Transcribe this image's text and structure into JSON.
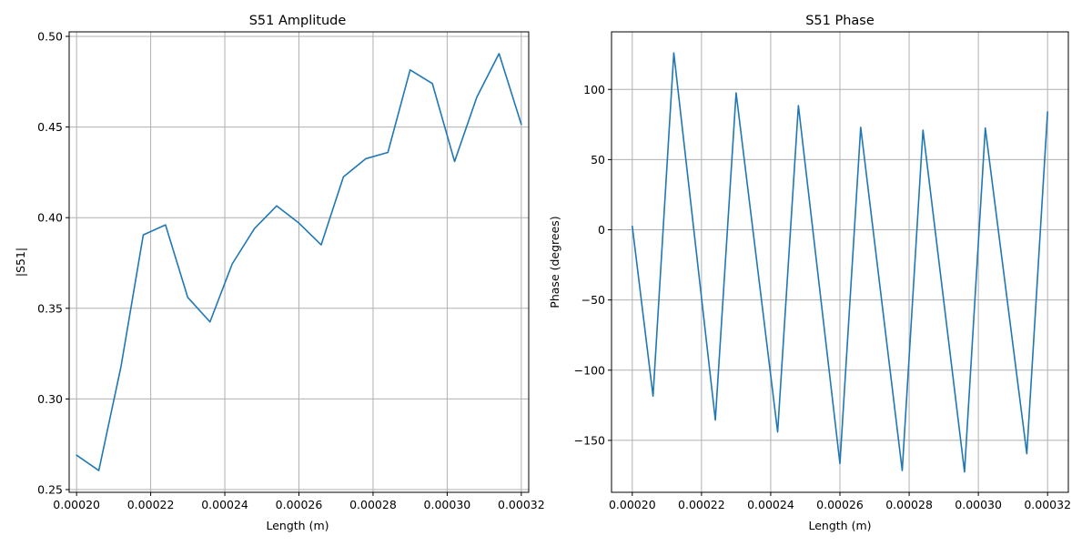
{
  "chart_data": [
    {
      "type": "line",
      "title": "S51 Amplitude",
      "xlabel": "Length (m)",
      "ylabel": "|S51|",
      "xlim": [
        0.000198,
        0.000322
      ],
      "ylim": [
        0.2485,
        0.5025
      ],
      "grid": true,
      "xticks": [
        0.0002,
        0.00022,
        0.00024,
        0.00026,
        0.00028,
        0.0003,
        0.00032
      ],
      "xtick_labels": [
        "0.00020",
        "0.00022",
        "0.00024",
        "0.00026",
        "0.00028",
        "0.00030",
        "0.00032"
      ],
      "yticks": [
        0.25,
        0.3,
        0.35,
        0.4,
        0.45,
        0.5
      ],
      "ytick_labels": [
        "0.25",
        "0.30",
        "0.35",
        "0.40",
        "0.45",
        "0.50"
      ],
      "color": "#1f77b4",
      "x": [
        0.0002,
        0.000206,
        0.000212,
        0.000218,
        0.000224,
        0.00023,
        0.000236,
        0.000242,
        0.000248,
        0.000254,
        0.00026,
        0.000266,
        0.000272,
        0.000278,
        0.000284,
        0.00029,
        0.000296,
        0.000302,
        0.000308,
        0.000314,
        0.00032
      ],
      "y": [
        0.269,
        0.2605,
        0.318,
        0.3905,
        0.396,
        0.356,
        0.3425,
        0.3745,
        0.394,
        0.4065,
        0.397,
        0.385,
        0.4225,
        0.4325,
        0.436,
        0.4815,
        0.474,
        0.431,
        0.4665,
        0.4905,
        0.4515
      ]
    },
    {
      "type": "line",
      "title": "S51 Phase",
      "xlabel": "Length (m)",
      "ylabel": "Phase (degrees)",
      "xlim": [
        0.000194,
        0.000326
      ],
      "ylim": [
        -187,
        141
      ],
      "grid": true,
      "xticks": [
        0.0002,
        0.00022,
        0.00024,
        0.00026,
        0.00028,
        0.0003,
        0.00032
      ],
      "xtick_labels": [
        "0.00020",
        "0.00022",
        "0.00024",
        "0.00026",
        "0.00028",
        "0.00030",
        "0.00032"
      ],
      "yticks": [
        -150,
        -100,
        -50,
        0,
        50,
        100
      ],
      "ytick_labels": [
        "−150",
        "−100",
        "−50",
        "0",
        "50",
        "100"
      ],
      "color": "#1f77b4",
      "x": [
        0.0002,
        0.000206,
        0.000212,
        0.000224,
        0.00023,
        0.000242,
        0.000248,
        0.00026,
        0.000266,
        0.000278,
        0.000284,
        0.000296,
        0.000302,
        0.000314,
        0.00032
      ],
      "y": [
        2.5,
        -118.5,
        126,
        -135.5,
        97.5,
        -144,
        88.5,
        -166.5,
        73,
        -171.5,
        71,
        -172.5,
        72.5,
        -159.5,
        84
      ]
    }
  ]
}
